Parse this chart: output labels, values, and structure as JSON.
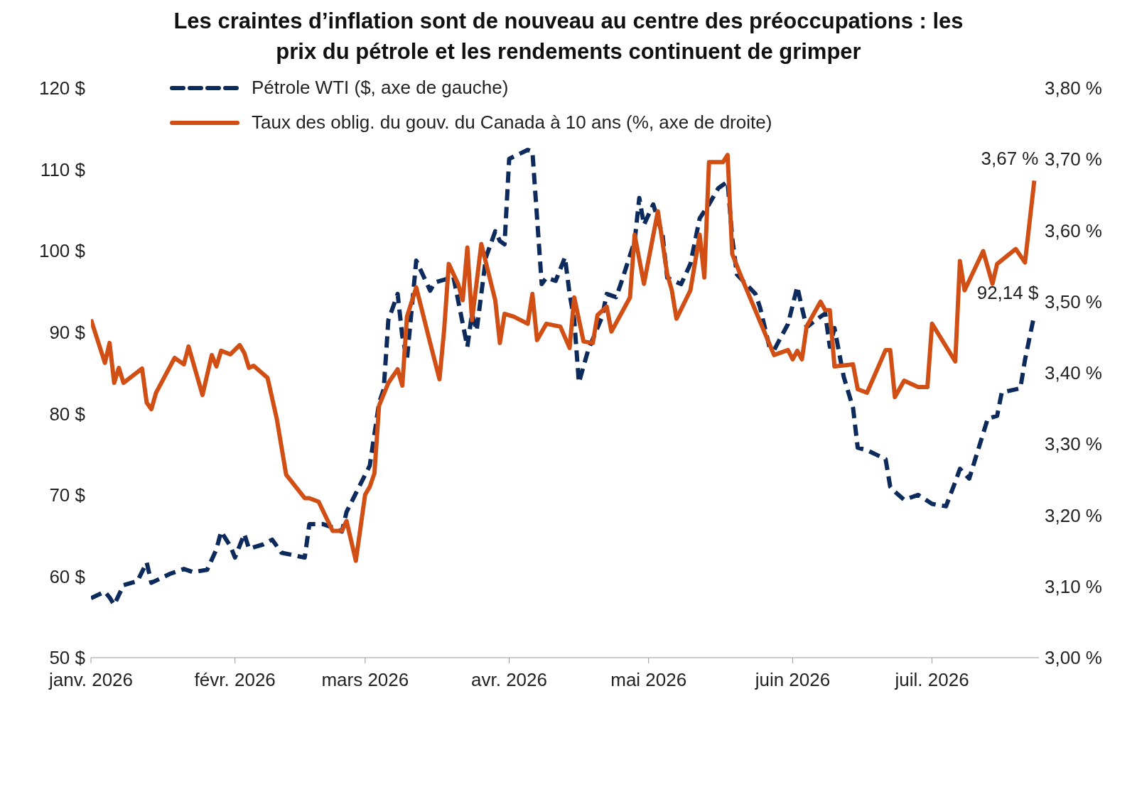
{
  "chart_data": {
    "type": "line",
    "title": "Les craintes d’inflation sont de nouveau au centre des préoccupations : les prix du pétrole et les rendements continuent de grimper",
    "xlim": [
      "2026-01-01",
      "2026-07-24"
    ],
    "xticks": [
      {
        "value": "2026-01-01",
        "label": "janv. 2026"
      },
      {
        "value": "2026-02-01",
        "label": "févr. 2026"
      },
      {
        "value": "2026-03-01",
        "label": "mars 2026"
      },
      {
        "value": "2026-04-01",
        "label": "avr. 2026"
      },
      {
        "value": "2026-05-01",
        "label": "mai 2026"
      },
      {
        "value": "2026-06-01",
        "label": "juin 2026"
      },
      {
        "value": "2026-07-01",
        "label": "juil. 2026"
      }
    ],
    "ylim": [
      50,
      120
    ],
    "yticks": [
      {
        "value": 50,
        "label": "50 $"
      },
      {
        "value": 60,
        "label": "60 $"
      },
      {
        "value": 70,
        "label": "70 $"
      },
      {
        "value": 80,
        "label": "80 $"
      },
      {
        "value": 90,
        "label": "90 $"
      },
      {
        "value": 100,
        "label": "100 $"
      },
      {
        "value": 110,
        "label": "110 $"
      },
      {
        "value": 120,
        "label": "120 $"
      }
    ],
    "y2lim": [
      3.0,
      3.8
    ],
    "y2ticks": [
      {
        "value": 3.0,
        "label": "3,00 %"
      },
      {
        "value": 3.1,
        "label": "3,10 %"
      },
      {
        "value": 3.2,
        "label": "3,20 %"
      },
      {
        "value": 3.3,
        "label": "3,30 %"
      },
      {
        "value": 3.4,
        "label": "3,40 %"
      },
      {
        "value": 3.5,
        "label": "3,50 %"
      },
      {
        "value": 3.6,
        "label": "3,60 %"
      },
      {
        "value": 3.7,
        "label": "3,70 %"
      },
      {
        "value": 3.8,
        "label": "3,80 %"
      }
    ],
    "legend": "top left",
    "marker": "none",
    "series": [
      {
        "name": "Pétrole WTI ($, axe de gauche)",
        "color": "#0d2a5c",
        "line_style": "dashed",
        "x": [
          "2026-01-01",
          "2026-01-04",
          "2026-01-05",
          "2026-01-06",
          "2026-01-08",
          "2026-01-11",
          "2026-01-13",
          "2026-01-14",
          "2026-01-18",
          "2026-01-21",
          "2026-01-23",
          "2026-01-26",
          "2026-01-28",
          "2026-01-29",
          "2026-01-31",
          "2026-02-01",
          "2026-02-03",
          "2026-02-04",
          "2026-02-07",
          "2026-02-09",
          "2026-02-11",
          "2026-02-16",
          "2026-02-17",
          "2026-02-20",
          "2026-02-22",
          "2026-02-24",
          "2026-02-25",
          "2026-02-27",
          "2026-03-02",
          "2026-03-04",
          "2026-03-05",
          "2026-03-06",
          "2026-03-08",
          "2026-03-09",
          "2026-03-10",
          "2026-03-11",
          "2026-03-12",
          "2026-03-15",
          "2026-03-16",
          "2026-03-20",
          "2026-03-23",
          "2026-03-24",
          "2026-03-25",
          "2026-03-27",
          "2026-03-29",
          "2026-03-30",
          "2026-03-31",
          "2026-04-01",
          "2026-04-05",
          "2026-04-06",
          "2026-04-08",
          "2026-04-09",
          "2026-04-11",
          "2026-04-13",
          "2026-04-14",
          "2026-04-15",
          "2026-04-16",
          "2026-04-18",
          "2026-04-21",
          "2026-04-22",
          "2026-04-24",
          "2026-04-25",
          "2026-04-28",
          "2026-04-29",
          "2026-04-30",
          "2026-05-02",
          "2026-05-04",
          "2026-05-05",
          "2026-05-08",
          "2026-05-10",
          "2026-05-12",
          "2026-05-14",
          "2026-05-16",
          "2026-05-18",
          "2026-05-19",
          "2026-05-20",
          "2026-05-22",
          "2026-05-24",
          "2026-05-25",
          "2026-05-27",
          "2026-05-28",
          "2026-05-31",
          "2026-06-02",
          "2026-06-03",
          "2026-06-04",
          "2026-06-06",
          "2026-06-08",
          "2026-06-09",
          "2026-06-10",
          "2026-06-12",
          "2026-06-14",
          "2026-06-15",
          "2026-06-17",
          "2026-06-21",
          "2026-06-22",
          "2026-06-23",
          "2026-06-25",
          "2026-06-28",
          "2026-07-01",
          "2026-07-04",
          "2026-07-06",
          "2026-07-07",
          "2026-07-09",
          "2026-07-11",
          "2026-07-13",
          "2026-07-15",
          "2026-07-16",
          "2026-07-20",
          "2026-07-21",
          "2026-07-23"
        ],
        "values": [
          57.3,
          58.1,
          57.4,
          56.5,
          58.9,
          59.4,
          61.7,
          59.2,
          60.3,
          60.9,
          60.5,
          60.8,
          63.3,
          65.5,
          63.7,
          62.3,
          65.2,
          63.4,
          63.9,
          64.5,
          62.9,
          62.3,
          66.4,
          66.4,
          66,
          65.5,
          67.9,
          70.2,
          73.6,
          81.3,
          83,
          91.5,
          94.7,
          89.5,
          86.6,
          92.7,
          98.8,
          95.1,
          96.1,
          96.8,
          88.2,
          92.3,
          90.2,
          99.2,
          102.4,
          101.2,
          100.8,
          111.3,
          112.4,
          112.2,
          95.9,
          96.7,
          96.3,
          99.2,
          94.7,
          91.5,
          83.8,
          87.8,
          91.9,
          94.7,
          94.3,
          95.9,
          101.2,
          106.5,
          103.2,
          105.7,
          102,
          96.7,
          95.9,
          98.4,
          104,
          105.7,
          107.7,
          108.5,
          101.6,
          97.1,
          95.9,
          94.7,
          93,
          88.2,
          87.8,
          91,
          95.6,
          93,
          90.6,
          91.5,
          92.3,
          88.2,
          90.5,
          84.5,
          80.7,
          75.8,
          75.5,
          74.4,
          71,
          70.4,
          69.4,
          70,
          68.9,
          68.6,
          71.6,
          73.2,
          72,
          75.7,
          79.4,
          79.7,
          82.6,
          83.1,
          86.6,
          92.14
        ],
        "value_labels": [
          null,
          null,
          null,
          null,
          null,
          null,
          null,
          null,
          null,
          null,
          null,
          null,
          null,
          null,
          null,
          null,
          null,
          null,
          null,
          null,
          null,
          null,
          null,
          null,
          null,
          null,
          null,
          null,
          null,
          null,
          null,
          null,
          null,
          null,
          null,
          null,
          null,
          null,
          null,
          null,
          null,
          null,
          null,
          null,
          null,
          null,
          null,
          null,
          null,
          null,
          null,
          null,
          null,
          null,
          null,
          null,
          null,
          null,
          null,
          null,
          null,
          null,
          null,
          null,
          null,
          null,
          null,
          null,
          null,
          null,
          null,
          null,
          null,
          null,
          null,
          null,
          null,
          null,
          null,
          null,
          null,
          null,
          null,
          null,
          null,
          null,
          null,
          null,
          null,
          null,
          null,
          null,
          null,
          null,
          null,
          null,
          null,
          null,
          null,
          null,
          null,
          null,
          null,
          null,
          null,
          null,
          null,
          null,
          null,
          "92,14 $"
        ]
      },
      {
        "name": "Taux des oblig. du gouv. du Canada à 10 ans (%, axe de droite)",
        "color": "#d14f14",
        "line_style": "solid",
        "axis": "y2",
        "x": [
          "2026-01-01",
          "2026-01-04",
          "2026-01-05",
          "2026-01-06",
          "2026-01-07",
          "2026-01-08",
          "2026-01-12",
          "2026-01-13",
          "2026-01-14",
          "2026-01-15",
          "2026-01-19",
          "2026-01-21",
          "2026-01-22",
          "2026-01-25",
          "2026-01-27",
          "2026-01-28",
          "2026-01-29",
          "2026-01-31",
          "2026-02-02",
          "2026-02-03",
          "2026-02-04",
          "2026-02-05",
          "2026-02-08",
          "2026-02-10",
          "2026-02-12",
          "2026-02-16",
          "2026-02-17",
          "2026-02-19",
          "2026-02-22",
          "2026-02-24",
          "2026-02-25",
          "2026-02-27",
          "2026-03-01",
          "2026-03-02",
          "2026-03-03",
          "2026-03-04",
          "2026-03-06",
          "2026-03-08",
          "2026-03-09",
          "2026-03-10",
          "2026-03-12",
          "2026-03-15",
          "2026-03-17",
          "2026-03-18",
          "2026-03-19",
          "2026-03-21",
          "2026-03-22",
          "2026-03-23",
          "2026-03-24",
          "2026-03-26",
          "2026-03-29",
          "2026-03-30",
          "2026-03-31",
          "2026-04-02",
          "2026-04-05",
          "2026-04-06",
          "2026-04-07",
          "2026-04-09",
          "2026-04-12",
          "2026-04-14",
          "2026-04-15",
          "2026-04-17",
          "2026-04-19",
          "2026-04-20",
          "2026-04-22",
          "2026-04-23",
          "2026-04-27",
          "2026-04-28",
          "2026-04-30",
          "2026-05-03",
          "2026-05-05",
          "2026-05-06",
          "2026-05-07",
          "2026-05-10",
          "2026-05-12",
          "2026-05-13",
          "2026-05-14",
          "2026-05-17",
          "2026-05-18",
          "2026-05-19",
          "2026-05-21",
          "2026-05-28",
          "2026-05-31",
          "2026-06-01",
          "2026-06-02",
          "2026-06-03",
          "2026-06-04",
          "2026-06-07",
          "2026-06-08",
          "2026-06-09",
          "2026-06-10",
          "2026-06-14",
          "2026-06-15",
          "2026-06-17",
          "2026-06-21",
          "2026-06-22",
          "2026-06-23",
          "2026-06-25",
          "2026-06-28",
          "2026-06-30",
          "2026-07-01",
          "2026-07-06",
          "2026-07-07",
          "2026-07-08",
          "2026-07-12",
          "2026-07-14",
          "2026-07-15",
          "2026-07-19",
          "2026-07-21",
          "2026-07-23"
        ],
        "values": [
          3.475,
          3.414,
          3.442,
          3.386,
          3.407,
          3.386,
          3.406,
          3.358,
          3.349,
          3.372,
          3.421,
          3.412,
          3.437,
          3.369,
          3.425,
          3.409,
          3.431,
          3.426,
          3.439,
          3.428,
          3.407,
          3.41,
          3.393,
          3.335,
          3.257,
          3.224,
          3.224,
          3.219,
          3.178,
          3.178,
          3.192,
          3.136,
          3.229,
          3.24,
          3.259,
          3.354,
          3.386,
          3.405,
          3.382,
          3.479,
          3.52,
          3.442,
          3.391,
          3.46,
          3.553,
          3.525,
          3.502,
          3.576,
          3.474,
          3.581,
          3.502,
          3.442,
          3.483,
          3.479,
          3.469,
          3.511,
          3.446,
          3.469,
          3.465,
          3.435,
          3.506,
          3.444,
          3.442,
          3.481,
          3.493,
          3.458,
          3.506,
          3.594,
          3.525,
          3.627,
          3.539,
          3.516,
          3.476,
          3.516,
          3.594,
          3.534,
          3.696,
          3.696,
          3.706,
          3.567,
          3.534,
          3.425,
          3.432,
          3.419,
          3.431,
          3.419,
          3.465,
          3.5,
          3.488,
          3.488,
          3.409,
          3.412,
          3.377,
          3.372,
          3.432,
          3.432,
          3.366,
          3.389,
          3.38,
          3.38,
          3.469,
          3.416,
          3.557,
          3.516,
          3.571,
          3.525,
          3.553,
          3.574,
          3.555,
          3.67
        ],
        "value_labels": [
          null,
          null,
          null,
          null,
          null,
          null,
          null,
          null,
          null,
          null,
          null,
          null,
          null,
          null,
          null,
          null,
          null,
          null,
          null,
          null,
          null,
          null,
          null,
          null,
          null,
          null,
          null,
          null,
          null,
          null,
          null,
          null,
          null,
          null,
          null,
          null,
          null,
          null,
          null,
          null,
          null,
          null,
          null,
          null,
          null,
          null,
          null,
          null,
          null,
          null,
          null,
          null,
          null,
          null,
          null,
          null,
          null,
          null,
          null,
          null,
          null,
          null,
          null,
          null,
          null,
          null,
          null,
          null,
          null,
          null,
          null,
          null,
          null,
          null,
          null,
          null,
          null,
          null,
          null,
          null,
          null,
          null,
          null,
          null,
          null,
          null,
          null,
          null,
          null,
          null,
          null,
          null,
          null,
          null,
          null,
          null,
          null,
          null,
          null,
          null,
          null,
          null,
          null,
          null,
          null,
          null,
          null,
          null,
          null,
          "3,67 %"
        ]
      }
    ]
  }
}
